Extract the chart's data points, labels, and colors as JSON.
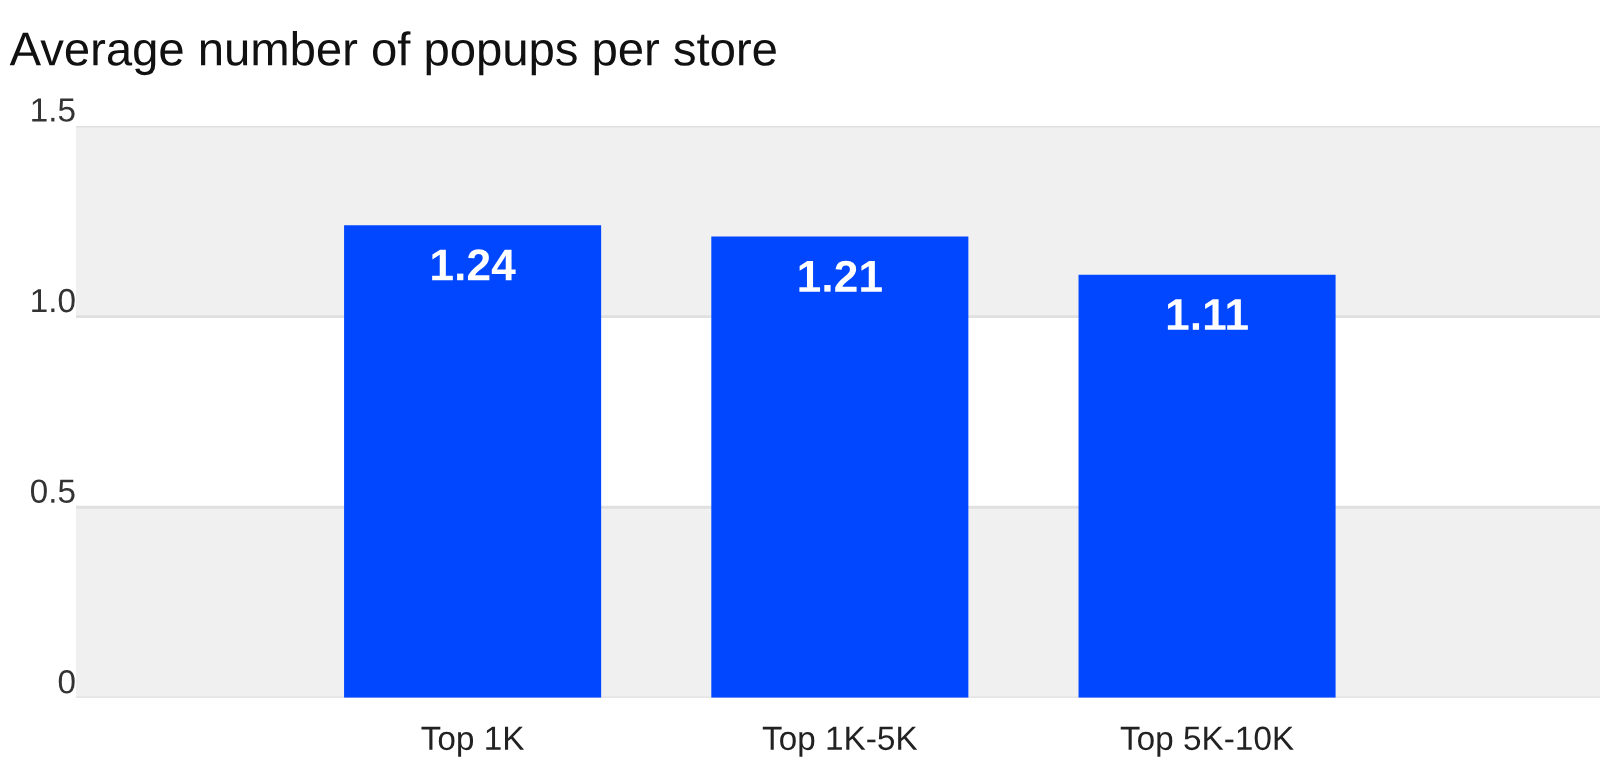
{
  "chart_data": {
    "type": "bar",
    "title": "Average number of popups per store",
    "categories": [
      "Top 1K",
      "Top 1K-5K",
      "Top 5K-10K"
    ],
    "values": [
      1.24,
      1.21,
      1.11
    ],
    "color": "#0047ff",
    "ylim": [
      0,
      1.5
    ],
    "yticks": [
      0,
      {
        "value": 0.5,
        "label": "0.5"
      },
      {
        "value": 1.0,
        "label": "1.0"
      },
      1.5
    ],
    "grid": "y",
    "data_labels": true,
    "bands": [
      {
        "axis": "y",
        "from": 0,
        "to": 0.5,
        "color": "#f0f0f0"
      },
      {
        "axis": "y",
        "from": 1.0,
        "to": 1.5,
        "color": "#f0f0f0"
      }
    ]
  }
}
